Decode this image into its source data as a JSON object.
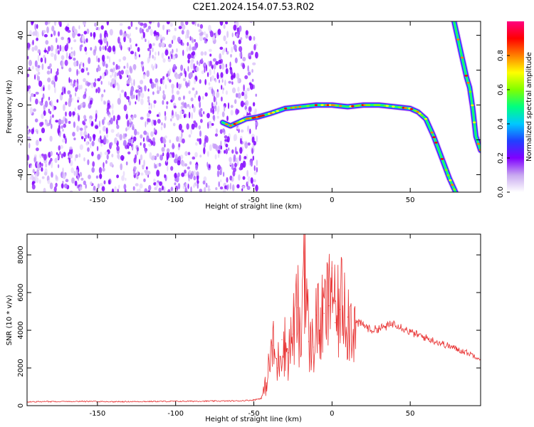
{
  "title": "C2E1.2024.154.07.53.R02",
  "chart_data": [
    {
      "type": "heatmap",
      "xlabel": "Height of straight line (km)",
      "ylabel": "Frequency (Hz)",
      "xlim": [
        -195,
        95
      ],
      "ylim": [
        -50,
        48
      ],
      "xticks": [
        -150,
        -100,
        -50,
        0,
        50
      ],
      "yticks": [
        -40,
        -20,
        0,
        20,
        40
      ],
      "grid": false,
      "noise_region_x": [
        -195,
        -48
      ],
      "trace": {
        "name": "",
        "x": [
          -70,
          -65,
          -55,
          -48,
          -40,
          -30,
          -20,
          -10,
          0,
          10,
          20,
          30,
          40,
          50,
          55,
          60,
          65,
          70,
          75,
          80
        ],
        "y": [
          -10,
          -12,
          -8,
          -7,
          -5,
          -2,
          -1,
          0,
          0,
          -1,
          0,
          0,
          -1,
          -2,
          -4,
          -8,
          -18,
          -30,
          -42,
          -52
        ]
      },
      "upper_trace": {
        "x": [
          78,
          80,
          83,
          86,
          88,
          90,
          92,
          95
        ],
        "y": [
          48,
          40,
          28,
          16,
          10,
          -2,
          -18,
          -26
        ]
      },
      "colorbar": {
        "label": "Normalized spectral amplitude",
        "range": [
          0,
          1
        ],
        "ticks": [
          "0.0",
          "0.2",
          "0.4",
          "0.6",
          "0.8"
        ],
        "tick_values": [
          0.0,
          0.2,
          0.4,
          0.6,
          0.8
        ],
        "colors": [
          "#ffffff",
          "#c8a8f0",
          "#8000ff",
          "#2040ff",
          "#00c8ff",
          "#00ff80",
          "#80ff00",
          "#ffff00",
          "#ff8000",
          "#ff0000",
          "#ff0080"
        ]
      }
    },
    {
      "type": "line",
      "xlabel": "Height of straight line (km)",
      "ylabel": "SNR (10 * v/v)",
      "xlim": [
        -195,
        95
      ],
      "ylim": [
        0,
        9100
      ],
      "xticks": [
        -150,
        -100,
        -50,
        0,
        50
      ],
      "yticks": [
        0,
        2000,
        4000,
        6000,
        8000
      ],
      "grid": false,
      "series": [
        {
          "name": "",
          "color": "#e83030",
          "x": [
            -195,
            -180,
            -160,
            -140,
            -120,
            -100,
            -80,
            -60,
            -50,
            -45,
            -42,
            -38,
            -35,
            -32,
            -28,
            -25,
            -22,
            -20,
            -18,
            -15,
            -12,
            -10,
            -8,
            -5,
            -2,
            0,
            2,
            5,
            8,
            10,
            15,
            20,
            25,
            30,
            35,
            40,
            50,
            60,
            70,
            80,
            90,
            95
          ],
          "y": [
            200,
            220,
            230,
            210,
            220,
            230,
            240,
            250,
            300,
            400,
            1200,
            3200,
            2000,
            3500,
            2800,
            3800,
            5200,
            2600,
            9100,
            3400,
            3100,
            4800,
            4000,
            4900,
            5300,
            7300,
            4400,
            5100,
            6000,
            4700,
            4400,
            4300,
            4000,
            4100,
            4200,
            4400,
            3900,
            3600,
            3300,
            3000,
            2700,
            2500
          ]
        }
      ]
    }
  ]
}
